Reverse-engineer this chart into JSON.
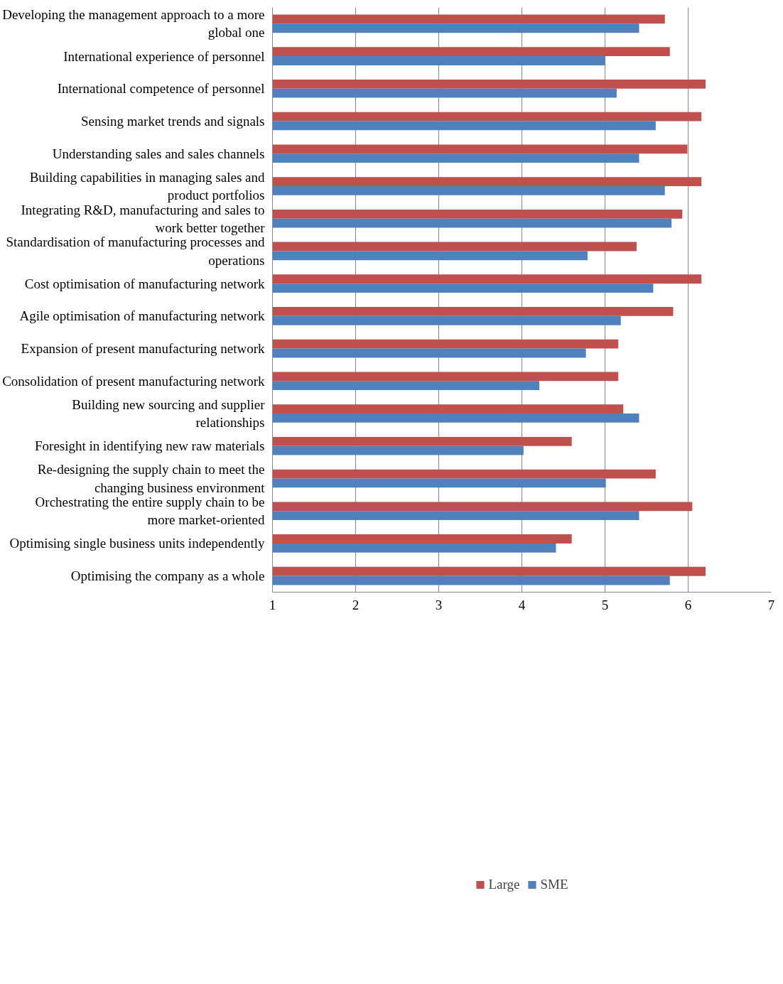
{
  "chart_data": {
    "type": "bar",
    "orientation": "horizontal",
    "categories": [
      "Developing the management approach to a more global one",
      "International experience of personnel",
      "International competence of personnel",
      "Sensing market trends and signals",
      "Understanding sales and sales channels",
      "Building capabilities in managing sales and product portfolios",
      "Integrating R&D, manufacturing and sales to work better together",
      "Standardisation of manufacturing processes and operations",
      "Cost optimisation of manufacturing network",
      "Agile optimisation of manufacturing network",
      "Expansion of present manufacturing network",
      "Consolidation of present manufacturing network",
      "Building new sourcing and supplier relationships",
      "Foresight in identifying new raw materials",
      "Re-designing the supply chain to meet the changing business environment",
      "Orchestrating the entire supply chain to be more market-oriented",
      "Optimising single business units independently",
      "Optimising the company as a whole"
    ],
    "series": [
      {
        "name": "Large",
        "color": "#c0504d",
        "values": [
          5.72,
          5.78,
          6.21,
          6.16,
          5.99,
          6.16,
          5.93,
          5.38,
          6.16,
          5.82,
          5.16,
          5.16,
          5.22,
          4.6,
          5.61,
          6.05,
          4.6,
          6.21
        ]
      },
      {
        "name": "SME",
        "color": "#4f81bd",
        "values": [
          5.41,
          5.0,
          5.14,
          5.61,
          5.41,
          5.72,
          5.8,
          4.79,
          5.58,
          5.19,
          4.77,
          4.21,
          5.41,
          4.02,
          5.01,
          5.41,
          4.41,
          5.78
        ]
      }
    ],
    "xlim": [
      1,
      7
    ],
    "xticks": [
      1,
      2,
      3,
      4,
      5,
      6,
      7
    ],
    "grid": "x",
    "legend": "bottom"
  }
}
